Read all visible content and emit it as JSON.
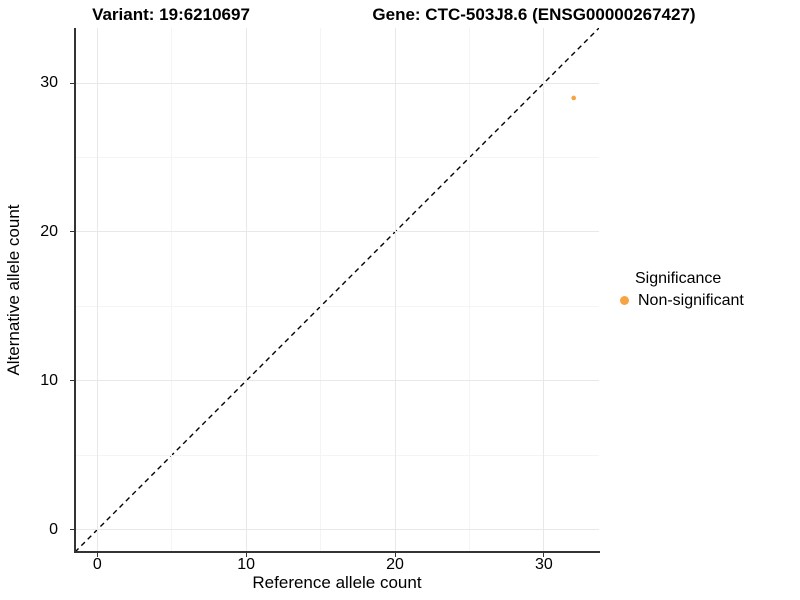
{
  "titles": {
    "variant": "Variant: 19:6210697",
    "gene": "Gene: CTC-503J8.6 (ENSG00000267427)"
  },
  "chart_data": {
    "type": "scatter",
    "xlabel": "Reference allele count",
    "ylabel": "Alternative allele count",
    "xlim": [
      -1.5,
      33.7
    ],
    "ylim": [
      -1.5,
      33.7
    ],
    "x_ticks": [
      0,
      10,
      20,
      30
    ],
    "y_ticks": [
      0,
      10,
      20,
      30
    ],
    "x_minor_ticks": [
      5,
      15,
      25
    ],
    "y_minor_ticks": [
      5,
      15,
      25
    ],
    "grid": true,
    "points": [
      {
        "x": 32,
        "y": 29,
        "series": "Non-significant"
      }
    ],
    "point_radius_px": 2.3,
    "reference_line": {
      "kind": "identity",
      "style": "dashed",
      "from": -1.5,
      "to": 33.7,
      "color": "#000000"
    },
    "legend": {
      "title": "Significance",
      "position": "right",
      "entries": [
        {
          "label": "Non-significant",
          "color": "#F9A242"
        }
      ]
    },
    "colors": {
      "point": "#F9A242",
      "grid_major": "#E8E8E8",
      "grid_minor": "#F4F4F4",
      "axis": "#333333"
    }
  }
}
